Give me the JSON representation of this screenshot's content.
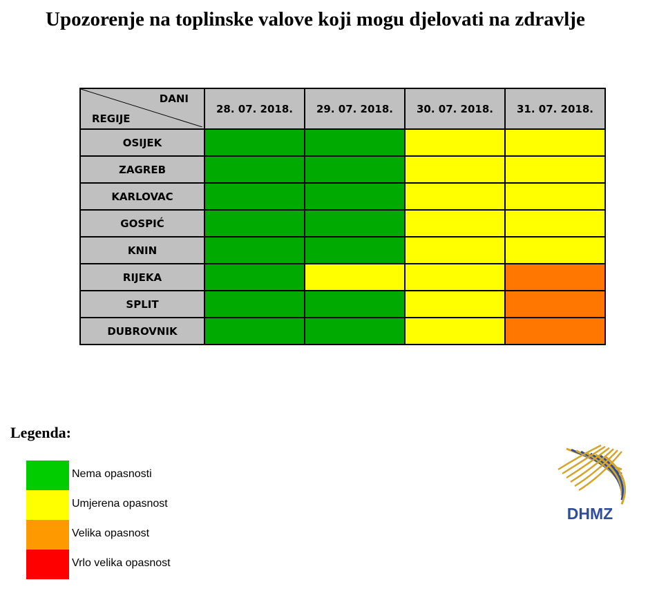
{
  "title": "Upozorenje na toplinske valove koji mogu djelovati na zdravlje",
  "table": {
    "corner_top": "DANI",
    "corner_bottom": "REGIJE",
    "dates": [
      "28. 07. 2018.",
      "29. 07. 2018.",
      "30. 07. 2018.",
      "31. 07. 2018."
    ],
    "rows": [
      {
        "region": "OSIJEK",
        "levels": [
          "green",
          "green",
          "yellow",
          "yellow"
        ]
      },
      {
        "region": "ZAGREB",
        "levels": [
          "green",
          "green",
          "yellow",
          "yellow"
        ]
      },
      {
        "region": "KARLOVAC",
        "levels": [
          "green",
          "green",
          "yellow",
          "yellow"
        ]
      },
      {
        "region": "GOSPIĆ",
        "levels": [
          "green",
          "green",
          "yellow",
          "yellow"
        ]
      },
      {
        "region": "KNIN",
        "levels": [
          "green",
          "green",
          "yellow",
          "yellow"
        ]
      },
      {
        "region": "RIJEKA",
        "levels": [
          "green",
          "yellow",
          "yellow",
          "orange"
        ]
      },
      {
        "region": "SPLIT",
        "levels": [
          "green",
          "green",
          "yellow",
          "orange"
        ]
      },
      {
        "region": "DUBROVNIK",
        "levels": [
          "green",
          "green",
          "yellow",
          "orange"
        ]
      }
    ]
  },
  "level_colors": {
    "green": "#00aa00",
    "yellow": "#ffff00",
    "orange": "#ff7700"
  },
  "legend": {
    "title": "Legenda:",
    "items": [
      {
        "color": "#00cc00",
        "label": "Nema opasnosti"
      },
      {
        "color": "#ffff00",
        "label": "Umjerena opasnost"
      },
      {
        "color": "#ff9900",
        "label": "Velika opasnost"
      },
      {
        "color": "#ff0000",
        "label": "Vrlo velika opasnost"
      }
    ]
  },
  "logo": {
    "text": "DHMZ",
    "text_color": "#2e4d9a",
    "stripe_color": "#d4a52a"
  }
}
